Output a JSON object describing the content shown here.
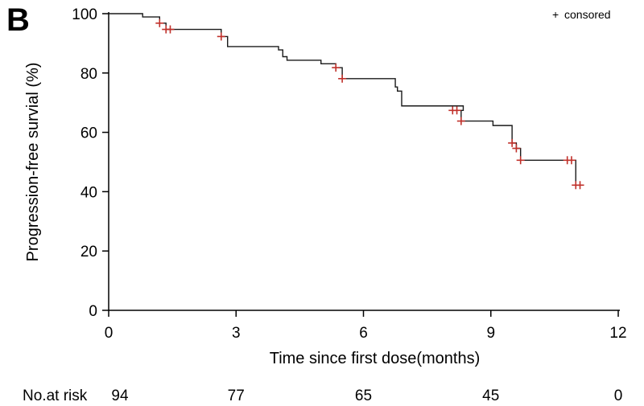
{
  "panel_label": "B",
  "chart_data": {
    "type": "line",
    "subtype": "kaplan-meier",
    "xlabel": "Time since first dose(months)",
    "ylabel": "Progression-free survial (%)",
    "xlim": [
      0,
      12
    ],
    "ylim": [
      0,
      100
    ],
    "xticks": [
      0,
      3,
      6,
      9,
      12
    ],
    "yticks": [
      0,
      20,
      40,
      60,
      80,
      100
    ],
    "grid": false,
    "legend": {
      "symbol": "+",
      "label": "consored",
      "placement": "top-right"
    },
    "series": [
      {
        "color": "#1a1a1a",
        "steps": [
          [
            0,
            100
          ],
          [
            0.8,
            98.9
          ],
          [
            1.2,
            96.8
          ],
          [
            1.35,
            94.7
          ],
          [
            2.65,
            92.3
          ],
          [
            2.8,
            88.9
          ],
          [
            4.0,
            87.8
          ],
          [
            4.1,
            85.5
          ],
          [
            4.2,
            84.3
          ],
          [
            5.0,
            83.1
          ],
          [
            5.35,
            81.8
          ],
          [
            5.5,
            78.1
          ],
          [
            6.75,
            75.3
          ],
          [
            6.8,
            73.9
          ],
          [
            6.9,
            68.9
          ],
          [
            8.35,
            67.4
          ],
          [
            8.3,
            63.8
          ],
          [
            9.05,
            62.3
          ],
          [
            9.5,
            56.4
          ],
          [
            9.6,
            54.6
          ],
          [
            9.7,
            50.6
          ],
          [
            11.0,
            42.2
          ],
          [
            11.1,
            42.2
          ]
        ],
        "censored": {
          "color": "#c0302a",
          "x": [
            1.2,
            1.35,
            1.45,
            2.65,
            5.35,
            5.5,
            8.1,
            8.2,
            8.3,
            9.5,
            9.6,
            9.7,
            10.8,
            10.9,
            11.0,
            11.1
          ],
          "y": [
            96.8,
            94.7,
            94.7,
            92.3,
            81.8,
            78.1,
            67.4,
            67.4,
            63.8,
            56.4,
            54.6,
            50.6,
            50.6,
            50.6,
            42.2,
            42.2
          ]
        }
      }
    ]
  },
  "risk_table": {
    "label": "No.at risk",
    "times": [
      0,
      3,
      6,
      9,
      12
    ],
    "values": [
      "94",
      "77",
      "65",
      "45",
      "0"
    ]
  }
}
